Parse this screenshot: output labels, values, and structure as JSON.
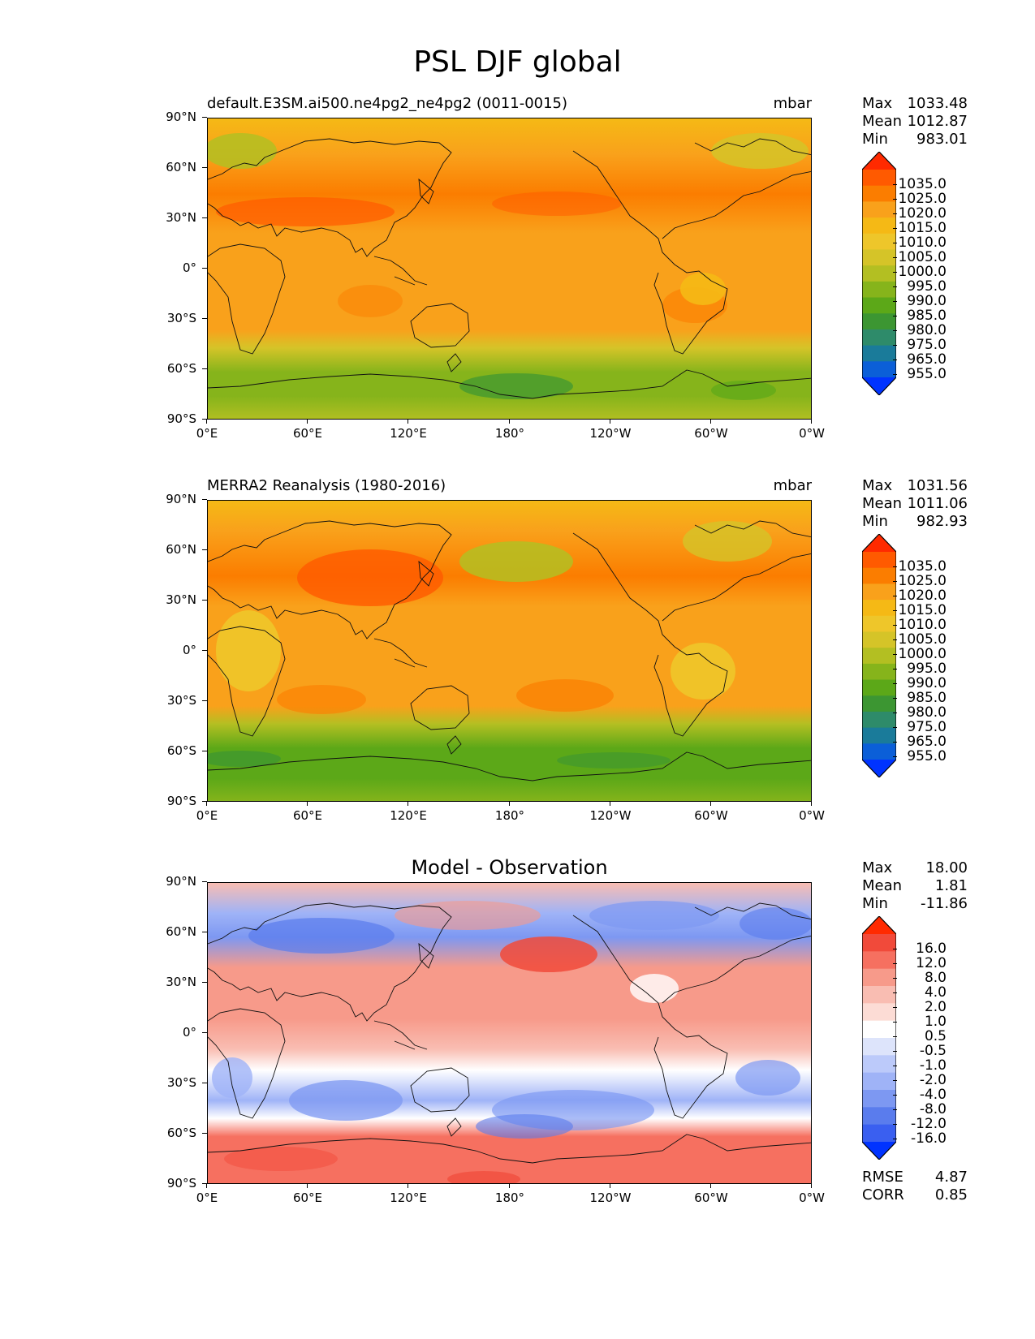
{
  "figure": {
    "title": "PSL DJF global"
  },
  "axes": {
    "lat_labels": [
      "90°N",
      "60°N",
      "30°N",
      "0°",
      "30°S",
      "60°S",
      "90°S"
    ],
    "lon_labels": [
      "0°E",
      "60°E",
      "120°E",
      "180°",
      "120°W",
      "60°W",
      "0°W"
    ]
  },
  "panels": [
    {
      "title_left": "default.E3SM.ai500.ne4pg2_ne4pg2 (0011-0015)",
      "units": "mbar",
      "stats": [
        {
          "label": "Max",
          "value": "1033.48"
        },
        {
          "label": "Mean",
          "value": "1012.87"
        },
        {
          "label": "Min",
          "value": "983.01"
        }
      ],
      "colorbar_ticks": [
        "1035.0",
        "1025.0",
        "1020.0",
        "1015.0",
        "1010.0",
        "1005.0",
        "1000.0",
        "995.0",
        "990.0",
        "985.0",
        "980.0",
        "975.0",
        "965.0",
        "955.0"
      ]
    },
    {
      "title_left": "MERRA2 Reanalysis (1980-2016)",
      "units": "mbar",
      "stats": [
        {
          "label": "Max",
          "value": "1031.56"
        },
        {
          "label": "Mean",
          "value": "1011.06"
        },
        {
          "label": "Min",
          "value": "982.93"
        }
      ],
      "colorbar_ticks": [
        "1035.0",
        "1025.0",
        "1020.0",
        "1015.0",
        "1010.0",
        "1005.0",
        "1000.0",
        "995.0",
        "990.0",
        "985.0",
        "980.0",
        "975.0",
        "965.0",
        "955.0"
      ]
    },
    {
      "title_center": "Model - Observation",
      "stats": [
        {
          "label": "Max",
          "value": "18.00"
        },
        {
          "label": "Mean",
          "value": "1.81"
        },
        {
          "label": "Min",
          "value": "-11.86"
        }
      ],
      "colorbar_ticks": [
        "16.0",
        "12.0",
        "8.0",
        "4.0",
        "2.0",
        "1.0",
        "0.5",
        "-0.5",
        "-1.0",
        "-2.0",
        "-4.0",
        "-8.0",
        "-12.0",
        "-16.0"
      ],
      "metrics": [
        {
          "label": "RMSE",
          "value": "4.87"
        },
        {
          "label": "CORR",
          "value": "0.85"
        }
      ]
    }
  ],
  "colors": {
    "field_scale": [
      "#ff2a00",
      "#ff5a00",
      "#fb7d00",
      "#f9a11b",
      "#f5b915",
      "#eec62a",
      "#d5c428",
      "#b3bf22",
      "#86b41b",
      "#5ca818",
      "#3c9632",
      "#2e8b6a",
      "#1a7b9a",
      "#0b5fd8",
      "#0033ff"
    ],
    "diff_scale": [
      "#ff2a00",
      "#f14a3a",
      "#f67060",
      "#f79a8a",
      "#f9bdb2",
      "#fcdcd5",
      "#ffffff",
      "#dde4fb",
      "#bccafa",
      "#9fb3f7",
      "#7d98f2",
      "#5a7ced",
      "#3a5ff0",
      "#0033ff"
    ]
  }
}
